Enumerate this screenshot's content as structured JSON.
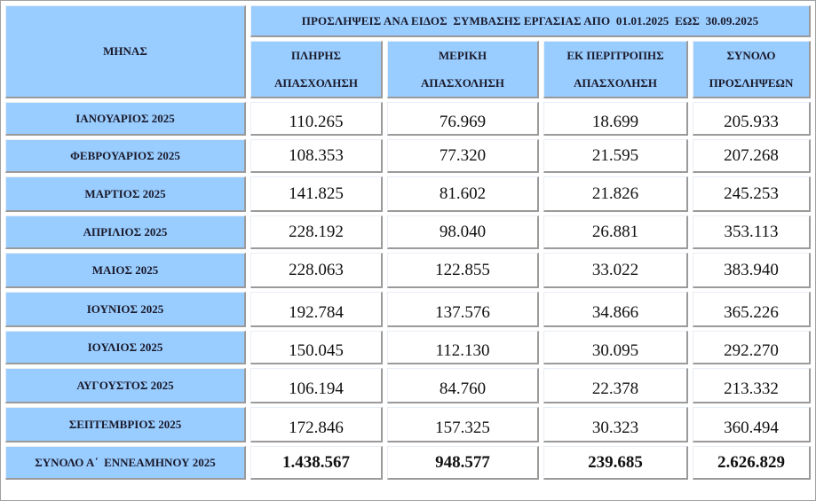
{
  "table": {
    "title": "ΠΡΟΣΛΗΨΕΙΣ ΑΝΑ ΕΙΔΟΣ  ΣΥΜΒΑΣΗΣ ΕΡΓΑΣΙΑΣ ΑΠΟ  01.01.2025  ΕΩΣ  30.09.2025",
    "month_header": "ΜΗΝΑΣ",
    "columns": [
      {
        "line1": "ΠΛΗΡΗΣ",
        "line2": "ΑΠΑΣΧΟΛΗΣΗ"
      },
      {
        "line1": "ΜΕΡΙΚΗ",
        "line2": "ΑΠΑΣΧΟΛΗΣΗ"
      },
      {
        "line1": "ΕΚ ΠΕΡΙΤΡΟΠΗΣ",
        "line2": "ΑΠΑΣΧΟΛΗΣΗ"
      },
      {
        "line1": "ΣΥΝΟΛΟ",
        "line2": "ΠΡΟΣΛΗΨΕΩΝ"
      }
    ],
    "rows": [
      {
        "month": "ΙΑΝΟΥΑΡΙΟΣ 2025",
        "full": "110.265",
        "part": "76.969",
        "rotation": "18.699",
        "total": "205.933"
      },
      {
        "month": "ΦΕΒΡΟΥΑΡΙΟΣ 2025",
        "full": "108.353",
        "part": "77.320",
        "rotation": "21.595",
        "total": "207.268"
      },
      {
        "month": "ΜΑΡΤΙΟΣ 2025",
        "full": "141.825",
        "part": "81.602",
        "rotation": "21.826",
        "total": "245.253"
      },
      {
        "month": "ΑΠΡΙΛΙΟΣ 2025",
        "full": "228.192",
        "part": "98.040",
        "rotation": "26.881",
        "total": "353.113"
      },
      {
        "month": "ΜΑΙΟΣ 2025",
        "full": "228.063",
        "part": "122.855",
        "rotation": "33.022",
        "total": "383.940"
      },
      {
        "month": "ΙΟΥΝΙΟΣ 2025",
        "full": "192.784",
        "part": "137.576",
        "rotation": "34.866",
        "total": "365.226"
      },
      {
        "month": "ΙΟΥΛΙΟΣ 2025",
        "full": "150.045",
        "part": "112.130",
        "rotation": "30.095",
        "total": "292.270"
      },
      {
        "month": "ΑΥΓΟΥΣΤΟΣ 2025",
        "full": "106.194",
        "part": "84.760",
        "rotation": "22.378",
        "total": "213.332"
      },
      {
        "month": "ΣΕΠΤΕΜΒΡΙΟΣ 2025",
        "full": "172.846",
        "part": "157.325",
        "rotation": "30.323",
        "total": "360.494"
      }
    ],
    "totals": {
      "label": "ΣΥΝΟΛΟ Α΄  ΕΝΝΕΑΜΗΝΟΥ 2025",
      "full": "1.438.567",
      "part": "948.577",
      "rotation": "239.685",
      "total": "2.626.829"
    }
  },
  "colors": {
    "header_bg": "#99ccff",
    "cell_bg": "#ffffff",
    "border_shadow": "#9a9a9a"
  }
}
